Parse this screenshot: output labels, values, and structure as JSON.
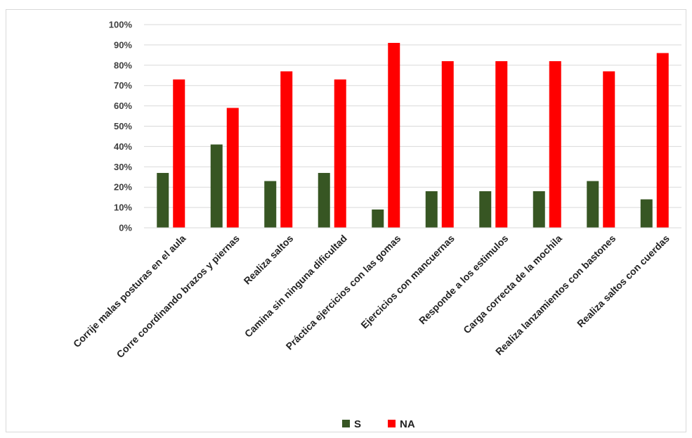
{
  "chart_data": {
    "type": "bar",
    "categories": [
      "Corrije malas posturas en el aula",
      "Corre coordinando brazos y piernas",
      "Realiza saltos",
      "Camina sin ninguna dificultad",
      "Práctica ejercicios con las gomas",
      "Ejercicios con mancuernas",
      "Responde a los estimulos",
      "Carga correcta de la mochila",
      "Realiza lanzamientos con bastones",
      "Realiza saltos con cuerdas"
    ],
    "series": [
      {
        "name": "S",
        "color": "#375623",
        "values": [
          27,
          41,
          23,
          27,
          9,
          18,
          18,
          18,
          23,
          14
        ]
      },
      {
        "name": "NA",
        "color": "#ff0000",
        "values": [
          73,
          59,
          77,
          73,
          91,
          82,
          82,
          82,
          77,
          86
        ]
      }
    ],
    "y_ticks": [
      "0%",
      "10%",
      "20%",
      "30%",
      "40%",
      "50%",
      "60%",
      "70%",
      "80%",
      "90%",
      "100%"
    ],
    "ylim": [
      0,
      100
    ],
    "grid": true,
    "legend_position": "bottom"
  }
}
